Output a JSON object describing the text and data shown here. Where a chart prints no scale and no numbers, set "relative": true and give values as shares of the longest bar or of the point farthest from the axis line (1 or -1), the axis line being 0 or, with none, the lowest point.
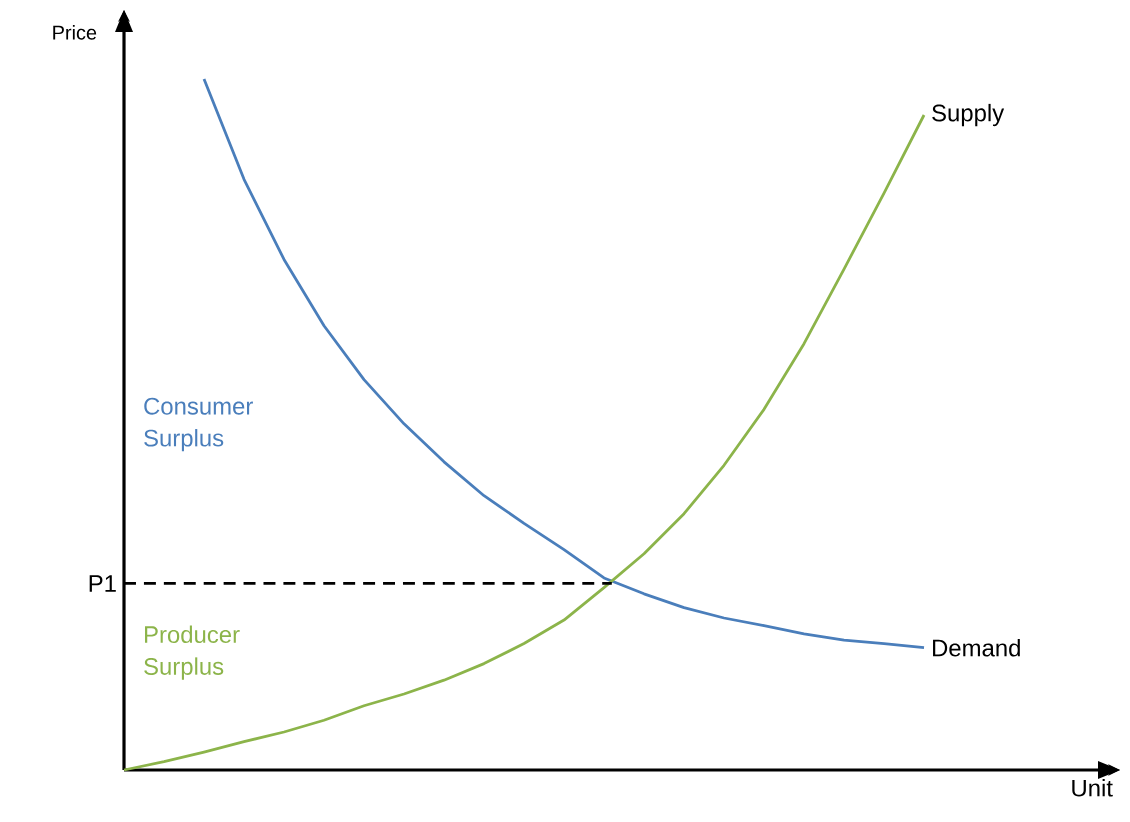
{
  "chart_data": {
    "type": "line",
    "relative": true,
    "ylabel": "Price",
    "legend": false,
    "marker": "none",
    "categories": [
      null,
      null,
      null,
      null,
      null,
      null,
      null,
      null,
      null,
      null,
      null,
      null,
      null,
      null,
      null,
      null,
      null,
      null,
      null,
      null,
      null
    ],
    "series": [
      {
        "name": "Demand",
        "color": "#4a7ebb",
        "values": [
          null,
          null,
          1,
          0.855,
          0.739,
          0.643,
          0.565,
          0.501,
          0.446,
          0.397,
          0.357,
          0.319,
          0.278,
          0.255,
          0.235,
          0.22,
          0.209,
          0.197,
          0.188,
          0.183,
          0.177
        ]
      },
      {
        "name": "Supply",
        "color": "#8cb44a",
        "values": [
          0,
          0.012,
          0.026,
          0.041,
          0.055,
          0.072,
          0.093,
          0.11,
          0.13,
          0.154,
          0.183,
          0.217,
          0.264,
          0.313,
          0.371,
          0.441,
          0.522,
          0.617,
          0.725,
          0.835,
          0.948
        ]
      }
    ],
    "ref_lines": [
      {
        "axis": "y",
        "value": 0.27,
        "label": "P1",
        "line_style": "dashed",
        "color": "#000000"
      }
    ],
    "annotations": [
      "Consumer Surplus",
      "Producer Surplus",
      "Unit"
    ]
  }
}
